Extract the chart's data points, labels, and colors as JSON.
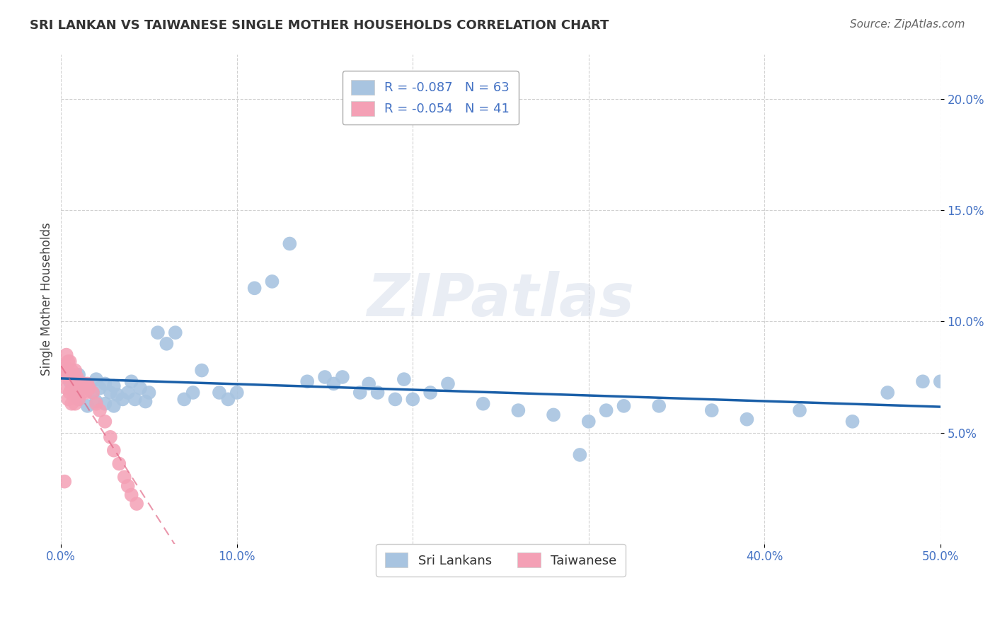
{
  "title": "SRI LANKAN VS TAIWANESE SINGLE MOTHER HOUSEHOLDS CORRELATION CHART",
  "source": "Source: ZipAtlas.com",
  "ylabel": "Single Mother Households",
  "xlim": [
    0.0,
    0.5
  ],
  "ylim": [
    0.0,
    0.22
  ],
  "xticks": [
    0.0,
    0.1,
    0.2,
    0.3,
    0.4,
    0.5
  ],
  "ytick_vals": [
    0.05,
    0.1,
    0.15,
    0.2
  ],
  "sri_lankan_color": "#a8c4e0",
  "taiwanese_color": "#f4a0b5",
  "sri_lankan_R": -0.087,
  "sri_lankan_N": 63,
  "taiwanese_R": -0.054,
  "taiwanese_N": 41,
  "legend_label_sri": "Sri Lankans",
  "legend_label_tai": "Taiwanese",
  "blue_line_color": "#1a5fa8",
  "pink_line_color": "#e06080",
  "watermark": "ZIPatlas",
  "sri_lankans_x": [
    0.005,
    0.008,
    0.01,
    0.01,
    0.012,
    0.015,
    0.015,
    0.018,
    0.02,
    0.02,
    0.022,
    0.025,
    0.025,
    0.028,
    0.03,
    0.03,
    0.032,
    0.035,
    0.038,
    0.04,
    0.042,
    0.045,
    0.048,
    0.05,
    0.055,
    0.06,
    0.065,
    0.07,
    0.075,
    0.08,
    0.09,
    0.095,
    0.1,
    0.11,
    0.12,
    0.13,
    0.14,
    0.15,
    0.155,
    0.16,
    0.17,
    0.175,
    0.18,
    0.19,
    0.195,
    0.2,
    0.21,
    0.22,
    0.24,
    0.26,
    0.28,
    0.3,
    0.31,
    0.32,
    0.34,
    0.37,
    0.39,
    0.42,
    0.45,
    0.47,
    0.49,
    0.5,
    0.295
  ],
  "sri_lankans_y": [
    0.073,
    0.068,
    0.076,
    0.065,
    0.072,
    0.07,
    0.062,
    0.068,
    0.074,
    0.064,
    0.07,
    0.072,
    0.063,
    0.068,
    0.071,
    0.062,
    0.067,
    0.065,
    0.068,
    0.073,
    0.065,
    0.07,
    0.064,
    0.068,
    0.095,
    0.09,
    0.095,
    0.065,
    0.068,
    0.078,
    0.068,
    0.065,
    0.068,
    0.115,
    0.118,
    0.135,
    0.073,
    0.075,
    0.072,
    0.075,
    0.068,
    0.072,
    0.068,
    0.065,
    0.074,
    0.065,
    0.068,
    0.072,
    0.063,
    0.06,
    0.058,
    0.055,
    0.06,
    0.062,
    0.062,
    0.06,
    0.056,
    0.06,
    0.055,
    0.068,
    0.073,
    0.073,
    0.04
  ],
  "taiwanese_x": [
    0.002,
    0.002,
    0.003,
    0.003,
    0.003,
    0.004,
    0.004,
    0.004,
    0.005,
    0.005,
    0.005,
    0.006,
    0.006,
    0.006,
    0.007,
    0.007,
    0.008,
    0.008,
    0.008,
    0.009,
    0.009,
    0.01,
    0.01,
    0.011,
    0.012,
    0.013,
    0.014,
    0.015,
    0.016,
    0.018,
    0.02,
    0.022,
    0.025,
    0.028,
    0.03,
    0.033,
    0.036,
    0.038,
    0.04,
    0.043,
    0.002
  ],
  "taiwanese_y": [
    0.08,
    0.075,
    0.085,
    0.078,
    0.07,
    0.082,
    0.075,
    0.065,
    0.082,
    0.075,
    0.068,
    0.078,
    0.07,
    0.063,
    0.076,
    0.068,
    0.078,
    0.07,
    0.063,
    0.075,
    0.067,
    0.073,
    0.065,
    0.07,
    0.068,
    0.072,
    0.068,
    0.072,
    0.07,
    0.068,
    0.063,
    0.06,
    0.055,
    0.048,
    0.042,
    0.036,
    0.03,
    0.026,
    0.022,
    0.018,
    0.028
  ]
}
